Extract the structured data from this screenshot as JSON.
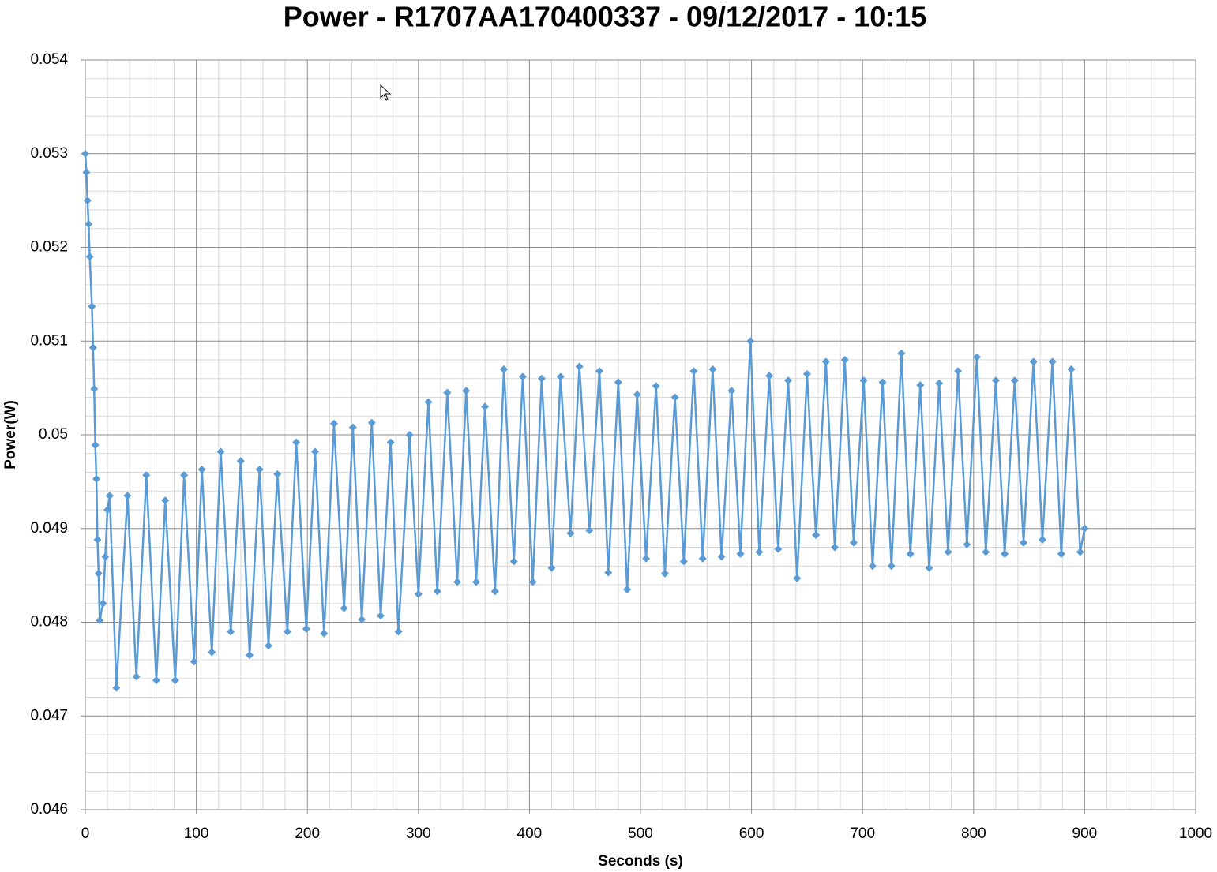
{
  "chart_data": {
    "type": "line",
    "title": "Power - R1707AA170400337 - 09/12/2017 - 10:15",
    "x_label": "Seconds (s)",
    "y_label": "Power(W)",
    "color": "#5b9bd5",
    "grid": true,
    "minor_grid": true,
    "xlim": [
      0,
      1000
    ],
    "ylim": [
      0.046,
      0.054
    ],
    "xticks": [
      0,
      100,
      200,
      300,
      400,
      500,
      600,
      700,
      800,
      900,
      1000
    ],
    "yticks": [
      0.046,
      0.047,
      0.048,
      0.049,
      0.05,
      0.051,
      0.052,
      0.053,
      0.054
    ],
    "x": [
      0,
      1,
      2,
      3,
      4,
      6,
      7,
      8,
      9,
      10,
      11,
      12,
      13,
      16,
      18,
      20,
      22,
      28,
      38,
      46,
      55,
      64,
      72,
      81,
      89,
      98,
      105,
      114,
      122,
      131,
      140,
      148,
      157,
      165,
      173,
      182,
      190,
      199,
      207,
      215,
      224,
      233,
      241,
      249,
      258,
      266,
      275,
      282,
      292,
      300,
      309,
      317,
      326,
      335,
      343,
      352,
      360,
      369,
      377,
      386,
      394,
      403,
      411,
      420,
      428,
      437,
      445,
      454,
      463,
      471,
      480,
      488,
      497,
      505,
      514,
      522,
      531,
      539,
      548,
      556,
      565,
      573,
      582,
      590,
      599,
      607,
      616,
      624,
      633,
      641,
      650,
      658,
      667,
      675,
      684,
      692,
      701,
      709,
      718,
      726,
      735,
      743,
      752,
      760,
      769,
      777,
      786,
      794,
      803,
      811,
      820,
      828,
      837,
      845,
      854,
      862,
      871,
      879,
      888,
      896,
      900
    ],
    "values": [
      0.053,
      0.0528,
      0.0525,
      0.05225,
      0.0519,
      0.05137,
      0.05093,
      0.05049,
      0.04989,
      0.04953,
      0.04888,
      0.04852,
      0.04802,
      0.0482,
      0.0487,
      0.0492,
      0.04935,
      0.0473,
      0.04935,
      0.04742,
      0.04957,
      0.04738,
      0.0493,
      0.04738,
      0.04957,
      0.04758,
      0.04963,
      0.04768,
      0.04982,
      0.0479,
      0.04972,
      0.04765,
      0.04963,
      0.04775,
      0.04958,
      0.0479,
      0.04992,
      0.04793,
      0.04982,
      0.04788,
      0.05012,
      0.04815,
      0.05008,
      0.04803,
      0.05013,
      0.04807,
      0.04992,
      0.0479,
      0.05,
      0.0483,
      0.05035,
      0.04833,
      0.05045,
      0.04843,
      0.05047,
      0.04843,
      0.0503,
      0.04833,
      0.0507,
      0.04865,
      0.05062,
      0.04843,
      0.0506,
      0.04858,
      0.05062,
      0.04895,
      0.05073,
      0.04898,
      0.05068,
      0.04853,
      0.05056,
      0.04835,
      0.05043,
      0.04868,
      0.05052,
      0.04852,
      0.0504,
      0.04865,
      0.05068,
      0.04868,
      0.0507,
      0.0487,
      0.05047,
      0.04873,
      0.051,
      0.04875,
      0.05063,
      0.04878,
      0.05058,
      0.04847,
      0.05065,
      0.04893,
      0.05078,
      0.0488,
      0.0508,
      0.04885,
      0.05058,
      0.0486,
      0.05056,
      0.0486,
      0.05087,
      0.04873,
      0.05053,
      0.04858,
      0.05055,
      0.04875,
      0.05068,
      0.04883,
      0.05083,
      0.04875,
      0.05058,
      0.04873,
      0.05058,
      0.04885,
      0.05078,
      0.04888,
      0.05078,
      0.04873,
      0.0507,
      0.04875,
      0.049
    ]
  }
}
